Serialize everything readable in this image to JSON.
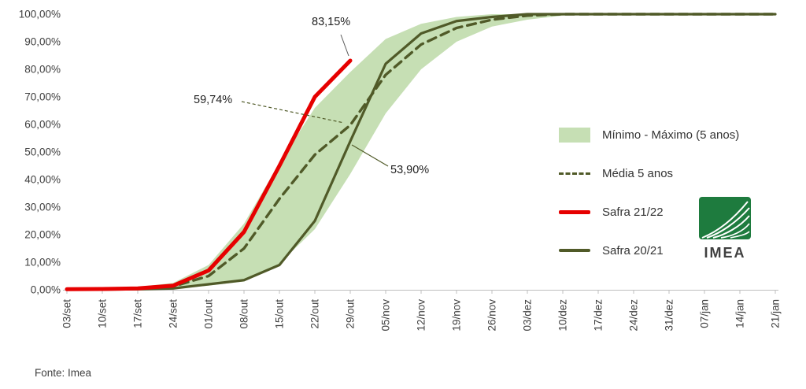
{
  "fonte": "Fonte: Imea",
  "logo": {
    "text": "IMEA"
  },
  "colors": {
    "band": "#c6dfb4",
    "olive": "#505a28",
    "red": "#e60000",
    "text": "#404040",
    "axis": "#bfbfbf"
  },
  "chart_data": {
    "type": "line",
    "title": "",
    "xlabel": "",
    "ylabel": "",
    "ylim": [
      0,
      100
    ],
    "grid": false,
    "legend_position": "right",
    "y_ticks": [
      "0,00%",
      "10,00%",
      "20,00%",
      "30,00%",
      "40,00%",
      "50,00%",
      "60,00%",
      "70,00%",
      "80,00%",
      "90,00%",
      "100,00%"
    ],
    "categories": [
      "03/set",
      "10/set",
      "17/set",
      "24/set",
      "01/out",
      "08/out",
      "15/out",
      "22/out",
      "29/out",
      "05/nov",
      "12/nov",
      "19/nov",
      "26/nov",
      "03/dez",
      "10/dez",
      "17/dez",
      "24/dez",
      "31/dez",
      "07/jan",
      "14/jan",
      "21/jan"
    ],
    "series": [
      {
        "name": "Mínimo - Máximo (5 anos)",
        "type": "band",
        "color": "#c6dfb4",
        "max": [
          0.3,
          0.5,
          1,
          2.5,
          9,
          24,
          46,
          66,
          79,
          91,
          96.5,
          99,
          100,
          100,
          100,
          100,
          100,
          100,
          100,
          100,
          100
        ],
        "min": [
          0,
          0,
          0.1,
          0.3,
          1.5,
          3,
          9.5,
          22,
          42,
          64,
          80,
          90,
          95.5,
          98,
          99.5,
          100,
          100,
          100,
          100,
          100,
          100
        ]
      },
      {
        "name": "Média 5 anos",
        "type": "dashed",
        "color": "#505a28",
        "width": 3.4,
        "values": [
          0.1,
          0.2,
          0.4,
          1.2,
          5,
          15,
          33,
          49,
          59.74,
          78,
          89,
          95,
          98,
          99.5,
          100,
          100,
          100,
          100,
          100,
          100,
          100
        ]
      },
      {
        "name": "Safra 21/22",
        "type": "line",
        "color": "#e60000",
        "width": 5,
        "values": [
          0.2,
          0.3,
          0.5,
          1.5,
          7,
          21,
          45,
          70,
          83.15,
          null,
          null,
          null,
          null,
          null,
          null,
          null,
          null,
          null,
          null,
          null,
          null
        ]
      },
      {
        "name": "Safra 20/21",
        "type": "line",
        "color": "#505a28",
        "width": 3.2,
        "values": [
          0.1,
          0.1,
          0.2,
          0.5,
          2,
          3.5,
          9,
          25,
          53.9,
          82,
          93,
          97.5,
          99,
          100,
          100,
          100,
          100,
          100,
          100,
          100,
          100
        ]
      }
    ],
    "annotations": [
      {
        "text": "83,15%",
        "series": "Safra 21/22",
        "category": "29/out",
        "value": 83.15
      },
      {
        "text": "59,74%",
        "series": "Média 5 anos",
        "category": "29/out",
        "value": 59.74
      },
      {
        "text": "53,90%",
        "series": "Safra 20/21",
        "category": "29/out",
        "value": 53.9
      }
    ]
  }
}
